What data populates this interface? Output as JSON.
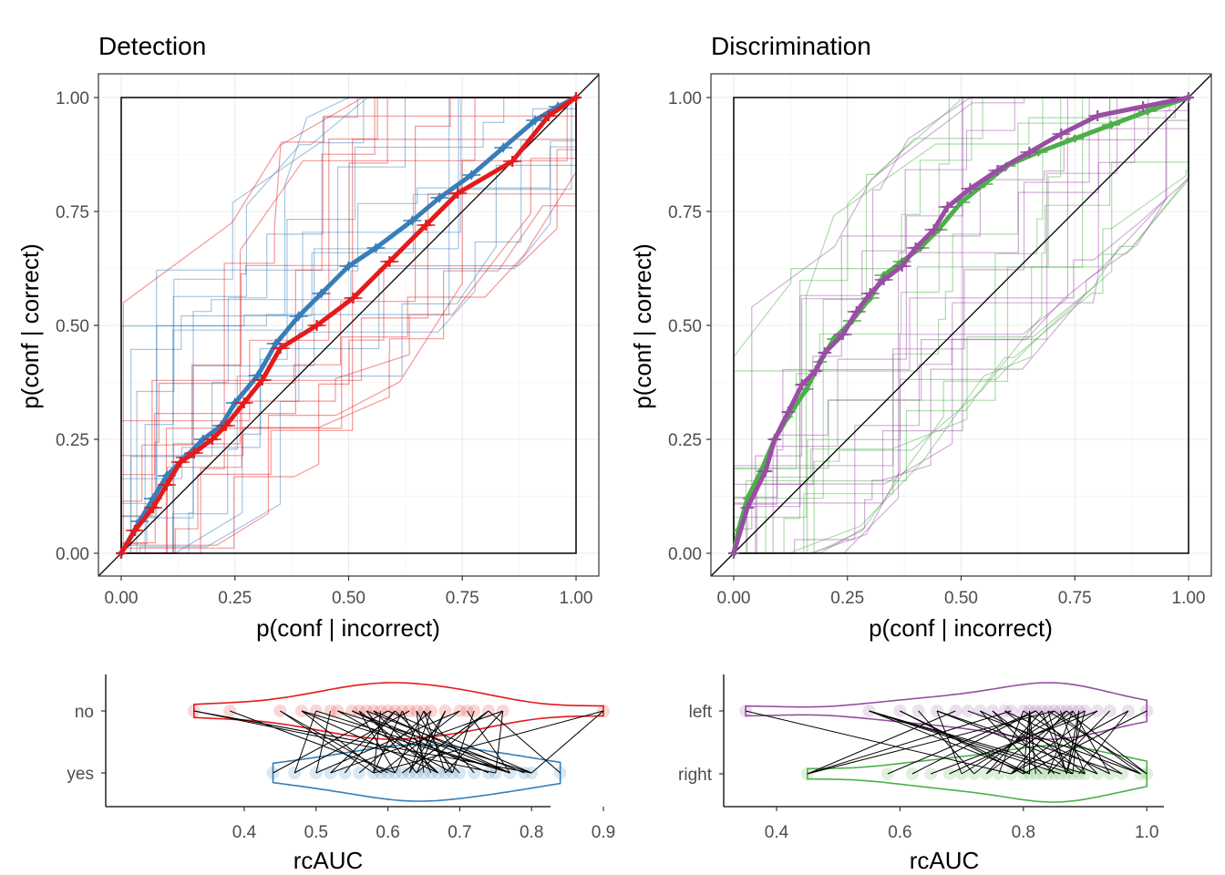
{
  "colors": {
    "detection_no": "#E41A1C",
    "detection_yes": "#377EB8",
    "discrimination_left": "#984EA3",
    "discrimination_right": "#4DAF4A",
    "reference": "#000000"
  },
  "chart_data": [
    {
      "id": "roc-detection",
      "type": "line",
      "title": "Detection",
      "xlabel": "p(conf | incorrect)",
      "ylabel": "p(conf | correct)",
      "xlim": [
        0,
        1
      ],
      "ylim": [
        0,
        1
      ],
      "x_ticks": [
        "0.00",
        "0.25",
        "0.50",
        "0.75",
        "1.00"
      ],
      "y_ticks": [
        "0.00",
        "0.25",
        "0.50",
        "0.75",
        "1.00"
      ],
      "grid": true,
      "legend": "none",
      "reference_lines": [
        "diagonal",
        "unit-square"
      ],
      "series": [
        {
          "key": "yes",
          "color": "#377EB8",
          "marker": "star",
          "x": [
            0,
            0.04,
            0.07,
            0.1,
            0.14,
            0.18,
            0.22,
            0.25,
            0.3,
            0.34,
            0.39,
            0.44,
            0.5,
            0.56,
            0.64,
            0.7,
            0.77,
            0.84,
            0.91,
            0.96,
            1.0
          ],
          "y": [
            0,
            0.07,
            0.12,
            0.17,
            0.21,
            0.25,
            0.28,
            0.33,
            0.39,
            0.46,
            0.52,
            0.57,
            0.63,
            0.67,
            0.73,
            0.78,
            0.83,
            0.89,
            0.95,
            0.98,
            1.0
          ],
          "x_err": [
            0,
            0.02,
            0.02,
            0.02,
            0.02,
            0.02,
            0.02,
            0.02,
            0.02,
            0.02,
            0.02,
            0.02,
            0.02,
            0.02,
            0.02,
            0.02,
            0.02,
            0.02,
            0.02,
            0.02,
            0
          ]
        },
        {
          "key": "no",
          "color": "#E41A1C",
          "marker": "plus",
          "x": [
            0,
            0.03,
            0.07,
            0.1,
            0.13,
            0.16,
            0.2,
            0.23,
            0.27,
            0.31,
            0.35,
            0.43,
            0.51,
            0.59,
            0.67,
            0.74,
            0.86,
            0.94,
            1.0
          ],
          "y": [
            0,
            0.05,
            0.1,
            0.15,
            0.2,
            0.22,
            0.25,
            0.28,
            0.33,
            0.38,
            0.45,
            0.5,
            0.56,
            0.64,
            0.72,
            0.79,
            0.86,
            0.96,
            1.0
          ],
          "x_err": [
            0,
            0.02,
            0.02,
            0.02,
            0.02,
            0.02,
            0.02,
            0.02,
            0.02,
            0.02,
            0.02,
            0.02,
            0.02,
            0.02,
            0.02,
            0.02,
            0.02,
            0.02,
            0
          ]
        }
      ]
    },
    {
      "id": "roc-discrimination",
      "type": "line",
      "title": "Discrimination",
      "xlabel": "p(conf | incorrect)",
      "ylabel": "p(conf | correct)",
      "xlim": [
        0,
        1
      ],
      "ylim": [
        0,
        1
      ],
      "x_ticks": [
        "0.00",
        "0.25",
        "0.50",
        "0.75",
        "1.00"
      ],
      "y_ticks": [
        "0.00",
        "0.25",
        "0.50",
        "0.75",
        "1.00"
      ],
      "grid": true,
      "legend": "none",
      "reference_lines": [
        "diagonal",
        "unit-square"
      ],
      "series": [
        {
          "key": "right",
          "color": "#4DAF4A",
          "marker": "diamond",
          "x": [
            0,
            0.01,
            0.03,
            0.06,
            0.09,
            0.12,
            0.16,
            0.19,
            0.22,
            0.26,
            0.3,
            0.33,
            0.37,
            0.41,
            0.45,
            0.5,
            0.55,
            0.6,
            0.67,
            0.75,
            0.83,
            0.91,
            1.0
          ],
          "y": [
            0,
            0.05,
            0.12,
            0.18,
            0.25,
            0.3,
            0.36,
            0.42,
            0.47,
            0.51,
            0.56,
            0.61,
            0.64,
            0.67,
            0.71,
            0.77,
            0.81,
            0.85,
            0.88,
            0.91,
            0.94,
            0.97,
            1.0
          ],
          "x_err": [
            0,
            0.01,
            0.01,
            0.01,
            0.01,
            0.01,
            0.015,
            0.015,
            0.015,
            0.02,
            0.02,
            0.02,
            0.02,
            0.02,
            0.02,
            0.02,
            0.02,
            0.02,
            0.02,
            0.02,
            0.02,
            0.02,
            0
          ]
        },
        {
          "key": "left",
          "color": "#984EA3",
          "marker": "plus",
          "x": [
            0,
            0.03,
            0.07,
            0.09,
            0.12,
            0.15,
            0.18,
            0.2,
            0.24,
            0.27,
            0.3,
            0.33,
            0.37,
            0.4,
            0.44,
            0.47,
            0.52,
            0.58,
            0.65,
            0.72,
            0.8,
            0.9,
            1.0
          ],
          "y": [
            0,
            0.1,
            0.18,
            0.25,
            0.31,
            0.37,
            0.4,
            0.44,
            0.48,
            0.53,
            0.57,
            0.6,
            0.63,
            0.67,
            0.71,
            0.76,
            0.8,
            0.84,
            0.88,
            0.92,
            0.96,
            0.98,
            1.0
          ],
          "x_err": [
            0,
            0.015,
            0.015,
            0.015,
            0.015,
            0.015,
            0.015,
            0.015,
            0.02,
            0.02,
            0.02,
            0.02,
            0.02,
            0.02,
            0.02,
            0.02,
            0.02,
            0.02,
            0.02,
            0.02,
            0.02,
            0.02,
            0
          ]
        }
      ]
    },
    {
      "id": "violin-detection",
      "type": "violin",
      "xlabel": "rcAUC",
      "ylabel": "",
      "xlim": [
        0.32,
        0.93
      ],
      "x_ticks": [
        0.4,
        0.5,
        0.6,
        0.7,
        0.8,
        0.9
      ],
      "x_tick_labels": [
        "0.4",
        "0.5",
        "0.6",
        "0.7",
        "0.8",
        "0.9"
      ],
      "categories": [
        "no",
        "yes"
      ],
      "series": [
        {
          "name": "no",
          "color": "#E41A1C",
          "points": [
            0.33,
            0.38,
            0.45,
            0.48,
            0.5,
            0.52,
            0.53,
            0.55,
            0.56,
            0.57,
            0.58,
            0.59,
            0.6,
            0.61,
            0.62,
            0.63,
            0.64,
            0.65,
            0.66,
            0.68,
            0.7,
            0.71,
            0.72,
            0.74,
            0.76,
            0.9
          ]
        },
        {
          "name": "yes",
          "color": "#377EB8",
          "points": [
            0.44,
            0.47,
            0.5,
            0.52,
            0.54,
            0.56,
            0.58,
            0.59,
            0.6,
            0.61,
            0.62,
            0.63,
            0.64,
            0.65,
            0.66,
            0.67,
            0.68,
            0.69,
            0.7,
            0.72,
            0.74,
            0.75,
            0.77,
            0.79,
            0.8,
            0.84
          ]
        }
      ]
    },
    {
      "id": "violin-discrimination",
      "type": "violin",
      "xlabel": "rcAUC",
      "ylabel": "",
      "xlim": [
        0.32,
        1.03
      ],
      "x_ticks": [
        0.4,
        0.6,
        0.8,
        1.0
      ],
      "x_tick_labels": [
        "0.4",
        "0.6",
        "0.8",
        "1.0"
      ],
      "categories": [
        "left",
        "right"
      ],
      "series": [
        {
          "name": "left",
          "color": "#984EA3",
          "points": [
            0.35,
            0.55,
            0.6,
            0.63,
            0.66,
            0.69,
            0.71,
            0.73,
            0.75,
            0.77,
            0.78,
            0.8,
            0.81,
            0.82,
            0.83,
            0.84,
            0.85,
            0.86,
            0.87,
            0.88,
            0.89,
            0.9,
            0.92,
            0.94,
            0.97,
            1.0
          ]
        },
        {
          "name": "right",
          "color": "#4DAF4A",
          "points": [
            0.45,
            0.58,
            0.62,
            0.65,
            0.68,
            0.7,
            0.72,
            0.74,
            0.76,
            0.78,
            0.8,
            0.81,
            0.82,
            0.83,
            0.84,
            0.85,
            0.86,
            0.87,
            0.88,
            0.89,
            0.9,
            0.92,
            0.94,
            0.96,
            0.99,
            1.0
          ]
        }
      ]
    }
  ]
}
